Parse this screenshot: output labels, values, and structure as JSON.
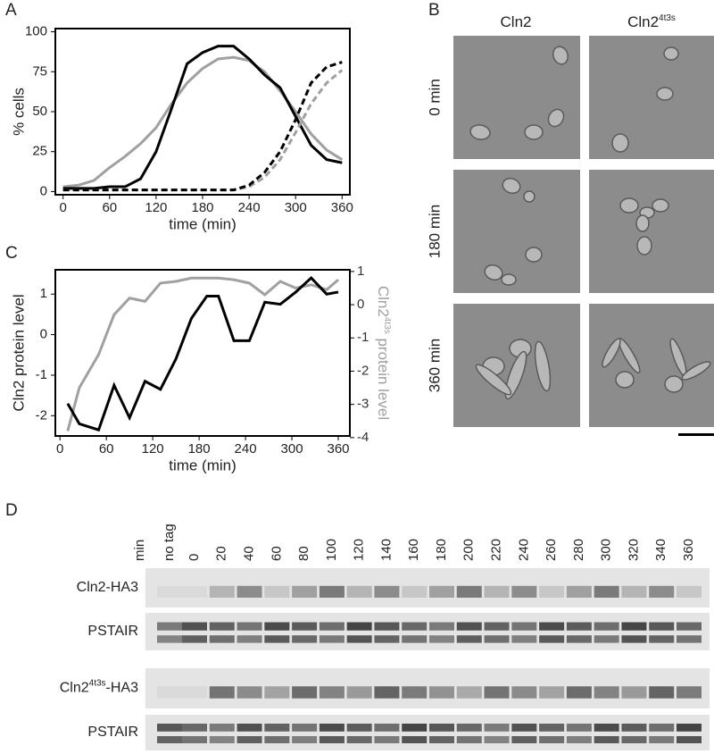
{
  "panel_labels": [
    "A",
    "B",
    "C",
    "D"
  ],
  "chart_data": [
    {
      "type": "line",
      "xlabel": "time (min)",
      "ylabel": "% cells",
      "xlim": [
        -10,
        370
      ],
      "ylim": [
        -2,
        102
      ],
      "xticks": [
        0,
        60,
        120,
        180,
        240,
        300,
        360
      ],
      "yticks": [
        0,
        25,
        50,
        75,
        100
      ],
      "x": [
        0,
        20,
        40,
        60,
        80,
        100,
        120,
        140,
        160,
        180,
        200,
        220,
        240,
        260,
        280,
        300,
        320,
        340,
        360
      ],
      "series": [
        {
          "color": "#a0a0a0",
          "dash": false,
          "values": [
            3,
            4,
            7,
            15,
            22,
            30,
            40,
            55,
            68,
            77,
            83,
            84,
            82,
            75,
            63,
            50,
            36,
            26,
            20
          ]
        },
        {
          "color": "#000000",
          "dash": false,
          "values": [
            2,
            2,
            2,
            3,
            3,
            8,
            25,
            52,
            80,
            87,
            91,
            91,
            83,
            73,
            65,
            47,
            29,
            20,
            18
          ]
        },
        {
          "color": "#a0a0a0",
          "dash": true,
          "values": [
            1,
            1,
            1,
            1,
            1,
            1,
            1,
            1,
            1,
            1,
            1,
            1,
            3,
            9,
            20,
            37,
            55,
            68,
            76
          ]
        },
        {
          "color": "#000000",
          "dash": true,
          "values": [
            1,
            1,
            1,
            1,
            1,
            1,
            1,
            1,
            1,
            1,
            1,
            1,
            4,
            12,
            25,
            45,
            68,
            78,
            81
          ]
        }
      ]
    },
    {
      "type": "line",
      "xlabel": "time (min)",
      "ylabel": "Cln2 protein level",
      "y2label": {
        "text": "Cln2",
        "sup": "4t3s",
        "rest": " protein level"
      },
      "y2color": "#a0a0a0",
      "xlim": [
        -6,
        375
      ],
      "ylim": [
        -2.5,
        1.6
      ],
      "y2lim": [
        -3.95,
        1.05
      ],
      "xticks": [
        0,
        60,
        120,
        180,
        240,
        300,
        360
      ],
      "yticks": [
        -2,
        -1,
        0,
        1
      ],
      "y2ticks": [
        -4,
        -3,
        -2,
        -1,
        0,
        1
      ],
      "x": [
        10,
        25,
        50,
        70,
        90,
        110,
        130,
        150,
        170,
        190,
        205,
        225,
        245,
        265,
        285,
        305,
        325,
        345,
        360
      ],
      "series": [
        {
          "color": "#a0a0a0",
          "axis": "y2",
          "values": [
            -3.8,
            -2.5,
            -1.5,
            -0.3,
            0.2,
            0.1,
            0.65,
            0.7,
            0.8,
            0.8,
            0.8,
            0.75,
            0.65,
            0.3,
            0.7,
            0.5,
            0.6,
            0.45,
            0.75
          ]
        },
        {
          "color": "#000000",
          "values": [
            -1.7,
            -2.2,
            -2.35,
            -1.25,
            -2.05,
            -1.15,
            -1.35,
            -0.6,
            0.4,
            0.95,
            0.95,
            -0.15,
            -0.15,
            0.8,
            0.75,
            1.05,
            1.4,
            1.0,
            1.05
          ]
        }
      ]
    }
  ],
  "micrographs": {
    "columns": [
      {
        "text": "Cln2"
      },
      {
        "text": "Cln2",
        "sup": "4t3s"
      }
    ],
    "rows": [
      "0 min",
      "180 min",
      "360 min"
    ]
  },
  "blot": {
    "lanes": [
      "min",
      "no tag",
      "0",
      "20",
      "40",
      "60",
      "80",
      "100",
      "120",
      "140",
      "160",
      "180",
      "200",
      "220",
      "240",
      "260",
      "280",
      "300",
      "320",
      "340",
      "360"
    ],
    "rows": [
      {
        "text": "Cln2-HA3"
      },
      {
        "text": "PSTAIR"
      },
      {
        "text": "Cln2",
        "sup": "4t3s",
        "rest": "-HA3"
      },
      {
        "text": "PSTAIR"
      }
    ]
  }
}
